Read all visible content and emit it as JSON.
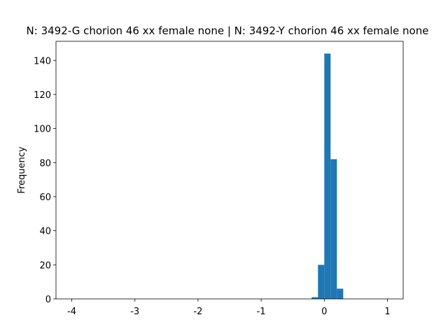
{
  "chart_data": {
    "type": "histogram",
    "title": "N: 3492-G chorion 46 xx female none | N: 3492-Y chorion 46 xx female none",
    "ylabel": "Frequency",
    "color": "#1f77b4",
    "bins": [
      -4,
      -3.9,
      -3.8,
      -3.7,
      -3.6,
      -3.5,
      -3.4,
      -3.3,
      -3.2,
      -3.1,
      -3,
      -2.9,
      -2.8,
      -2.7,
      -2.6,
      -2.5,
      -2.4,
      -2.3,
      -2.2,
      -2.1,
      -2,
      -1.9,
      -1.8,
      -1.7,
      -1.6,
      -1.5,
      -1.4,
      -1.3,
      -1.2,
      -1.1,
      -1,
      -0.9,
      -0.8,
      -0.7,
      -0.6,
      -0.5,
      -0.4,
      -0.3,
      -0.2,
      -0.1,
      0,
      0.1,
      0.2,
      0.3,
      0.4,
      0.5,
      0.6,
      0.7,
      0.8,
      0.9,
      1
    ],
    "counts": [
      0,
      0,
      0,
      0,
      0,
      0,
      0,
      0,
      0,
      0,
      0,
      0,
      0,
      0,
      0,
      0,
      0,
      0,
      0,
      0,
      0,
      0,
      0,
      0,
      0,
      0,
      0,
      0,
      0,
      0,
      0,
      0,
      0,
      0,
      0,
      0,
      0,
      0,
      1,
      20,
      144,
      82,
      6,
      0,
      0,
      0,
      0,
      0,
      0,
      0
    ],
    "xlim": [
      -4.25,
      1.25
    ],
    "xticks": [
      -4,
      -3,
      -2,
      -1,
      0,
      1
    ],
    "ylim": [
      0,
      151.2
    ],
    "yticks": [
      0,
      20,
      40,
      60,
      80,
      100,
      120,
      140
    ]
  }
}
